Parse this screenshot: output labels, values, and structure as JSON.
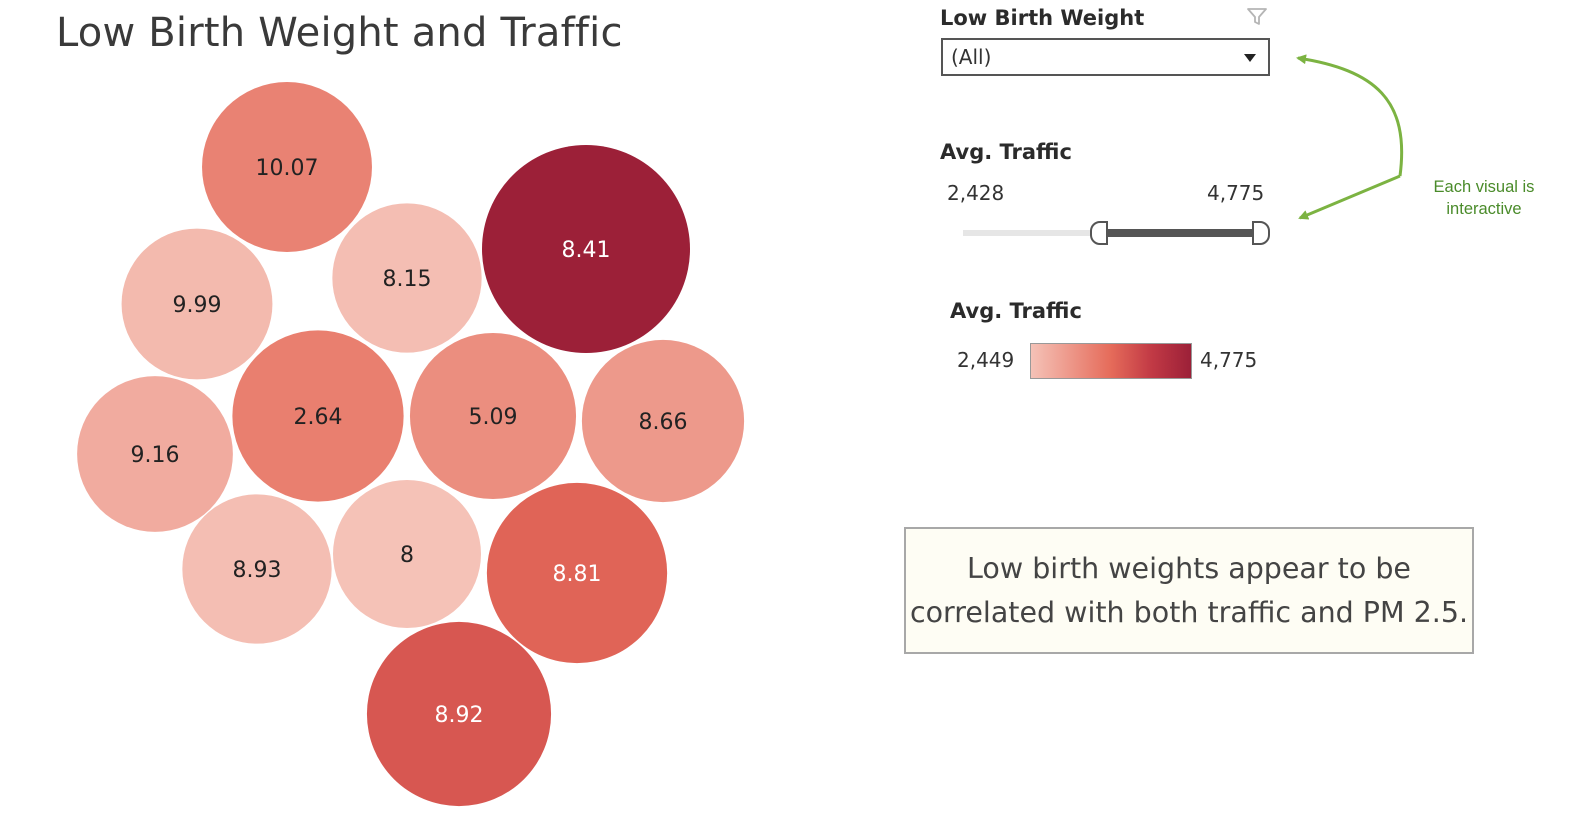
{
  "title": "Low Birth Weight and Traffic",
  "filter": {
    "label": "Low Birth Weight",
    "icon": "funnel-icon",
    "selected": "(All)"
  },
  "slider": {
    "label": "Avg. Traffic",
    "min_label": "2,428",
    "max_label": "4,775",
    "domain": [
      2428,
      4775
    ],
    "range": [
      3450,
      4775
    ]
  },
  "legend": {
    "label": "Avg. Traffic",
    "min_label": "2,449",
    "max_label": "4,775",
    "colors": [
      "#f5c2b7",
      "#e56b5a",
      "#c23a45",
      "#9c2038"
    ]
  },
  "note": {
    "text": "Low birth weights appear to be\ncorrelated with both traffic and PM 2.5."
  },
  "annotation": {
    "text": "Each visual is\ninteractive",
    "color": "#7cb342"
  },
  "chart_data": {
    "type": "bubble",
    "title": "Low Birth Weight and Traffic",
    "size_and_color_measure": "Avg. Traffic",
    "label_measure": "Low Birth Weight",
    "color_range": [
      2449,
      4775
    ],
    "bubbles": [
      {
        "label": "10.07",
        "value": 10.07,
        "traffic": 3300
      },
      {
        "label": "8.41",
        "value": 8.41,
        "traffic": 4775
      },
      {
        "label": "8.15",
        "value": 8.15,
        "traffic": 2500
      },
      {
        "label": "9.99",
        "value": 9.99,
        "traffic": 2560
      },
      {
        "label": "2.64",
        "value": 2.64,
        "traffic": 3350
      },
      {
        "label": "5.09",
        "value": 5.09,
        "traffic": 3150
      },
      {
        "label": "8.66",
        "value": 8.66,
        "traffic": 3000
      },
      {
        "label": "9.16",
        "value": 9.16,
        "traffic": 2750
      },
      {
        "label": "8.93",
        "value": 8.93,
        "traffic": 2500
      },
      {
        "label": "8",
        "value": 8,
        "traffic": 2449
      },
      {
        "label": "8.81",
        "value": 8.81,
        "traffic": 3700
      },
      {
        "label": "8.92",
        "value": 8.92,
        "traffic": 3850
      }
    ]
  }
}
